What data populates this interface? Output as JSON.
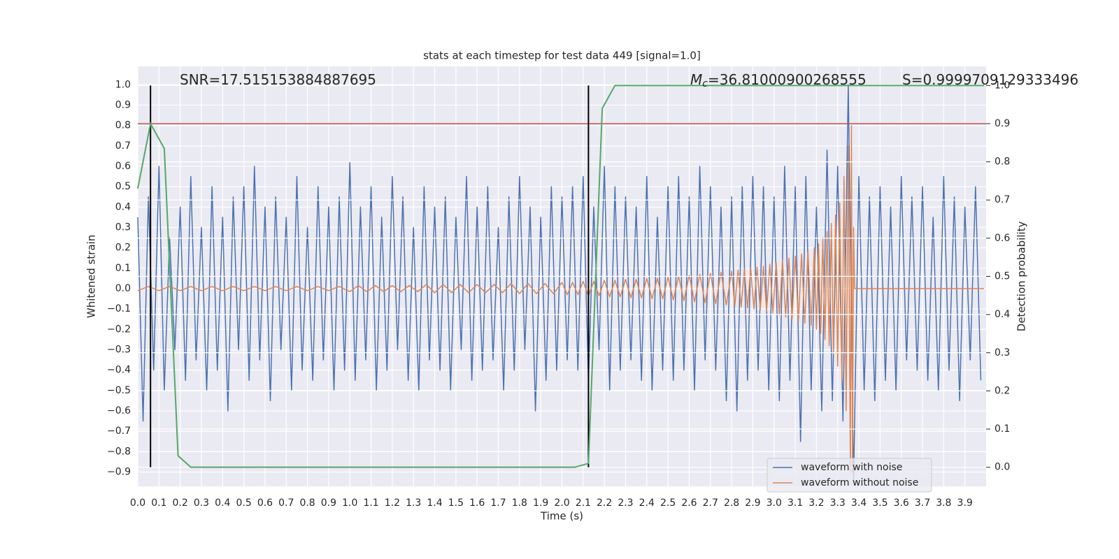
{
  "chart_data": {
    "type": "line",
    "title": "stats at each timestep for test data 449 [signal=1.0]",
    "xlabel": "Time (s)",
    "ylabel": "Whitened strain",
    "y2label": "Detection probability",
    "annotations": [
      {
        "text": "SNR=17.515153884887695"
      },
      {
        "symbol": "M",
        "subscript": "c",
        "text": "=36.81000900268555"
      },
      {
        "text": "S=0.9999709129333496"
      }
    ],
    "grid": true,
    "legend": "lower right",
    "xlim": [
      0,
      4
    ],
    "ylim": [
      -0.97,
      1.09
    ],
    "y2lim": [
      -0.05,
      1.05
    ],
    "xticks": [
      {
        "value": 0,
        "label": "0.0"
      },
      0.1,
      0.2,
      0.3,
      0.4,
      0.5,
      0.6,
      0.7,
      0.8,
      0.9,
      {
        "value": 1,
        "label": "1.0"
      },
      1.1,
      1.2,
      1.3,
      1.4,
      1.5,
      1.6,
      1.7,
      1.8,
      1.9,
      {
        "value": 2,
        "label": "2.0"
      },
      2.1,
      2.2,
      2.3,
      2.4,
      2.5,
      2.6,
      2.7,
      2.8,
      2.9,
      {
        "value": 3,
        "label": "3.0"
      },
      3.1,
      3.2,
      3.3,
      3.4,
      3.5,
      3.6,
      3.7,
      3.8,
      3.9
    ],
    "yticks": [
      {
        "value": 1,
        "label": "1.0"
      },
      0.9,
      0.8,
      0.7,
      0.6,
      0.5,
      0.4,
      0.3,
      0.2,
      0.1,
      {
        "value": 0,
        "label": "0.0"
      },
      {
        "value": -0.1,
        "label": "−0.1"
      },
      {
        "value": -0.2,
        "label": "−0.2"
      },
      {
        "value": -0.3,
        "label": "−0.3"
      },
      {
        "value": -0.4,
        "label": "−0.4"
      },
      {
        "value": -0.5,
        "label": "−0.5"
      },
      {
        "value": -0.6,
        "label": "−0.6"
      },
      {
        "value": -0.7,
        "label": "−0.7"
      },
      {
        "value": -0.8,
        "label": "−0.8"
      },
      {
        "value": -0.9,
        "label": "−0.9"
      }
    ],
    "y2ticks": [
      {
        "value": 0,
        "label": "0.0"
      },
      0.1,
      0.2,
      0.3,
      0.4,
      0.5,
      0.6,
      0.7,
      0.8,
      0.9,
      {
        "value": 1,
        "label": "1.0"
      }
    ],
    "series": [
      {
        "name": "waveform with noise",
        "color": "#4c72b0",
        "x": [
          0,
          0.025,
          0.05,
          0.075,
          0.1,
          0.125,
          0.15,
          0.175,
          0.2,
          0.225,
          0.25,
          0.275,
          0.3,
          0.325,
          0.35,
          0.375,
          0.4,
          0.425,
          0.45,
          0.475,
          0.5,
          0.525,
          0.55,
          0.575,
          0.6,
          0.625,
          0.65,
          0.675,
          0.7,
          0.725,
          0.75,
          0.775,
          0.8,
          0.825,
          0.85,
          0.875,
          0.9,
          0.925,
          0.95,
          0.975,
          1,
          1.025,
          1.05,
          1.075,
          1.1,
          1.125,
          1.15,
          1.175,
          1.2,
          1.225,
          1.25,
          1.275,
          1.3,
          1.325,
          1.35,
          1.375,
          1.4,
          1.425,
          1.45,
          1.475,
          1.5,
          1.525,
          1.55,
          1.575,
          1.6,
          1.625,
          1.65,
          1.675,
          1.7,
          1.725,
          1.75,
          1.775,
          1.8,
          1.825,
          1.85,
          1.875,
          1.9,
          1.925,
          1.95,
          1.975,
          2,
          2.025,
          2.05,
          2.075,
          2.1,
          2.125,
          2.15,
          2.175,
          2.2,
          2.225,
          2.25,
          2.275,
          2.3,
          2.325,
          2.35,
          2.375,
          2.4,
          2.425,
          2.45,
          2.475,
          2.5,
          2.525,
          2.55,
          2.575,
          2.6,
          2.625,
          2.65,
          2.675,
          2.7,
          2.725,
          2.75,
          2.775,
          2.8,
          2.825,
          2.85,
          2.875,
          2.9,
          2.925,
          2.95,
          2.975,
          3,
          3.025,
          3.05,
          3.075,
          3.1,
          3.125,
          3.15,
          3.175,
          3.2,
          3.225,
          3.25,
          3.275,
          3.3,
          3.325,
          3.35,
          3.375,
          3.4,
          3.425,
          3.45,
          3.475,
          3.5,
          3.525,
          3.55,
          3.575,
          3.6,
          3.625,
          3.65,
          3.675,
          3.7,
          3.725,
          3.75,
          3.775,
          3.8,
          3.825,
          3.85,
          3.875,
          3.9,
          3.925,
          3.95,
          3.975
        ],
        "values": [
          0.35,
          -0.65,
          0.45,
          -0.4,
          0.6,
          -0.5,
          0.25,
          -0.3,
          0.4,
          -0.45,
          0.55,
          -0.35,
          0.3,
          -0.5,
          0.5,
          -0.4,
          0.35,
          -0.6,
          0.45,
          -0.3,
          0.5,
          -0.45,
          0.6,
          -0.35,
          0.4,
          -0.55,
          0.45,
          -0.3,
          0.35,
          -0.5,
          0.55,
          -0.4,
          0.3,
          -0.45,
          0.5,
          -0.35,
          0.4,
          -0.5,
          0.45,
          -0.4,
          0.62,
          -0.45,
          0.4,
          -0.35,
          0.5,
          -0.5,
          0.35,
          -0.4,
          0.55,
          -0.3,
          0.45,
          -0.45,
          0.3,
          -0.5,
          0.5,
          -0.35,
          0.4,
          -0.4,
          0.45,
          -0.5,
          0.35,
          -0.3,
          0.55,
          -0.45,
          0.4,
          -0.4,
          0.5,
          -0.35,
          0.3,
          -0.5,
          0.45,
          -0.4,
          0.55,
          -0.3,
          0.4,
          -0.6,
          0.35,
          -0.45,
          0.5,
          -0.4,
          0.45,
          -0.35,
          0.5,
          -0.4,
          0.55,
          -0.45,
          0.4,
          -0.3,
          0.6,
          -0.5,
          0.5,
          -0.4,
          0.45,
          -0.35,
          0.4,
          -0.45,
          0.55,
          -0.5,
          0.35,
          -0.4,
          0.5,
          -0.45,
          0.55,
          -0.4,
          0.45,
          -0.5,
          0.6,
          -0.35,
          0.5,
          -0.4,
          0.4,
          -0.55,
          0.45,
          -0.6,
          0.5,
          -0.45,
          0.55,
          -0.4,
          0.5,
          -0.5,
          0.45,
          -0.55,
          0.6,
          -0.45,
          0.5,
          -0.75,
          0.55,
          -0.5,
          0.4,
          -0.6,
          0.68,
          -0.55,
          0.6,
          -0.65,
          1.0,
          -0.95,
          0.55,
          -0.5,
          0.45,
          -0.55,
          0.5,
          -0.45,
          0.4,
          -0.5,
          0.55,
          -0.35,
          0.45,
          -0.4,
          0.5,
          -0.45,
          0.35,
          -0.5,
          0.55,
          -0.4,
          0.45,
          -0.55,
          0.4,
          -0.35,
          0.5,
          -0.45
        ]
      },
      {
        "name": "waveform without noise",
        "color": "#dd8452",
        "x": [
          0,
          0.05,
          0.1,
          0.15,
          0.2,
          0.25,
          0.3,
          0.35,
          0.4,
          0.45,
          0.5,
          0.55,
          0.6,
          0.65,
          0.7,
          0.75,
          0.8,
          0.85,
          0.9,
          0.95,
          1,
          1.04,
          1.08,
          1.12,
          1.16,
          1.2,
          1.24,
          1.28,
          1.32,
          1.36,
          1.4,
          1.44,
          1.48,
          1.52,
          1.56,
          1.6,
          1.64,
          1.68,
          1.72,
          1.76,
          1.8,
          1.84,
          1.88,
          1.92,
          1.96,
          2,
          2.025,
          2.05,
          2.075,
          2.1,
          2.125,
          2.15,
          2.175,
          2.2,
          2.225,
          2.25,
          2.275,
          2.3,
          2.325,
          2.35,
          2.375,
          2.4,
          2.425,
          2.45,
          2.475,
          2.5,
          2.525,
          2.55,
          2.575,
          2.6,
          2.625,
          2.65,
          2.675,
          2.7,
          2.725,
          2.75,
          2.775,
          2.8,
          2.815,
          2.83,
          2.845,
          2.86,
          2.875,
          2.89,
          2.905,
          2.92,
          2.935,
          2.95,
          2.965,
          2.98,
          2.995,
          3.01,
          3.025,
          3.04,
          3.055,
          3.07,
          3.085,
          3.1,
          3.115,
          3.13,
          3.145,
          3.16,
          3.175,
          3.19,
          3.2,
          3.21,
          3.22,
          3.23,
          3.24,
          3.25,
          3.26,
          3.27,
          3.28,
          3.29,
          3.3,
          3.31,
          3.32,
          3.33,
          3.34,
          3.35,
          3.36,
          3.365,
          3.37,
          3.375,
          3.38,
          3.99
        ],
        "values": [
          -0.01,
          0.01,
          -0.01,
          0.01,
          -0.01,
          0.01,
          -0.01,
          0.01,
          -0.01,
          0.01,
          -0.01,
          0.01,
          -0.01,
          0.01,
          -0.01,
          0.01,
          -0.01,
          0.01,
          -0.01,
          0.01,
          -0.015,
          0.015,
          -0.015,
          0.015,
          -0.015,
          0.015,
          -0.015,
          0.015,
          -0.015,
          0.02,
          -0.02,
          0.02,
          -0.02,
          0.02,
          -0.02,
          0.02,
          -0.02,
          0.02,
          -0.02,
          0.025,
          -0.025,
          0.025,
          -0.025,
          0.025,
          -0.025,
          0.03,
          -0.03,
          0.03,
          -0.03,
          0.035,
          -0.035,
          0.035,
          -0.035,
          0.04,
          -0.04,
          0.04,
          -0.04,
          0.045,
          -0.045,
          0.045,
          -0.045,
          0.05,
          -0.05,
          0.05,
          -0.05,
          0.055,
          -0.055,
          0.06,
          -0.06,
          0.065,
          -0.065,
          0.07,
          -0.07,
          0.075,
          -0.075,
          0.08,
          -0.08,
          0.085,
          -0.085,
          0.09,
          -0.09,
          0.095,
          -0.095,
          0.1,
          -0.1,
          0.105,
          -0.105,
          0.11,
          -0.11,
          0.12,
          -0.12,
          0.13,
          -0.13,
          0.14,
          -0.14,
          0.15,
          -0.15,
          0.16,
          -0.16,
          0.17,
          -0.17,
          0.18,
          -0.18,
          0.2,
          -0.2,
          0.22,
          -0.22,
          0.25,
          -0.25,
          0.28,
          -0.28,
          0.32,
          -0.32,
          0.36,
          -0.38,
          0.42,
          -0.45,
          0.55,
          -0.6,
          0.7,
          -0.9,
          0.8,
          -0.9,
          0.3,
          0,
          0
        ]
      }
    ],
    "probability": {
      "color": "#55a868",
      "axis": "y2",
      "x": [
        0,
        0.06,
        0.125,
        0.19,
        0.25,
        2.06,
        2.125,
        2.19,
        2.25,
        3.99
      ],
      "values": [
        0.73,
        0.9,
        0.835,
        0.03,
        0,
        0,
        0.01,
        0.94,
        1,
        1
      ]
    },
    "threshold": {
      "value": 0.9,
      "color": "#c44e52",
      "axis": "y2"
    },
    "vlines": {
      "x": [
        0.06,
        2.125
      ],
      "ymin": 0,
      "ymax": 1,
      "color": "#000000",
      "axis": "y2"
    }
  }
}
